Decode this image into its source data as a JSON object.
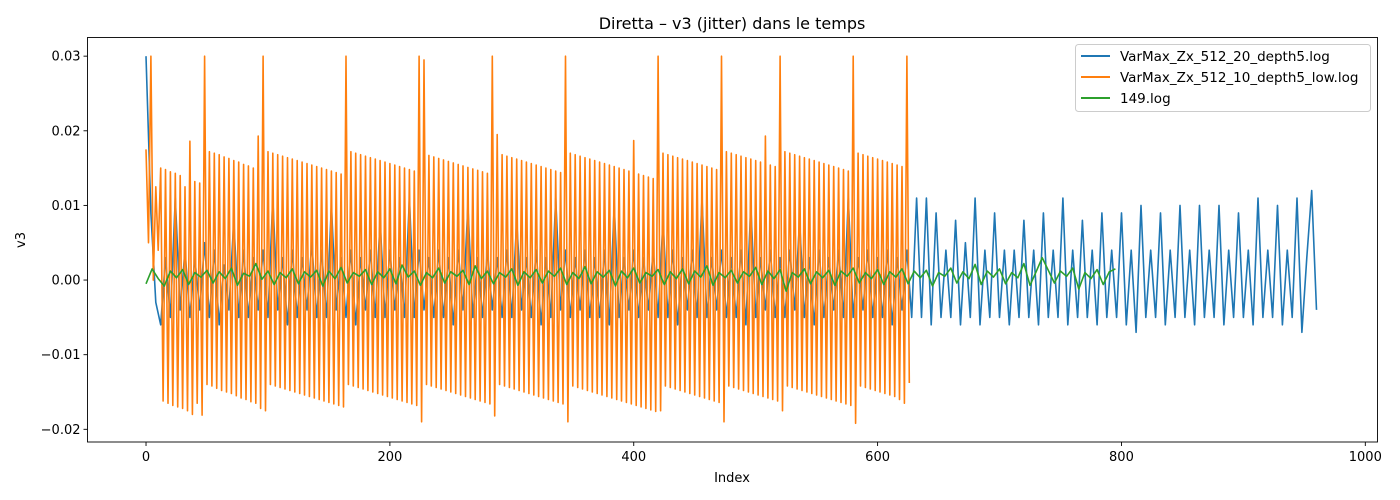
{
  "chart_data": {
    "type": "line",
    "title": "Diretta – v3 (jitter) dans le temps",
    "xlabel": "Index",
    "ylabel": "v3",
    "xlim": [
      -48,
      1010
    ],
    "ylim": [
      -0.0217,
      0.0325
    ],
    "xticks": [
      0,
      200,
      400,
      600,
      800,
      1000
    ],
    "xtick_labels": [
      "0",
      "200",
      "400",
      "600",
      "800",
      "1000"
    ],
    "yticks": [
      -0.02,
      -0.01,
      0.0,
      0.01,
      0.02,
      0.03
    ],
    "ytick_labels": [
      "−0.02",
      "−0.01",
      "0.00",
      "0.01",
      "0.02",
      "0.03"
    ],
    "grid": false,
    "legend_position": "top-right",
    "series": [
      {
        "name": "VarMax_Zx_512_20_depth5.log",
        "color": "#1f77b4",
        "x_start": 0,
        "x_step": 4,
        "y": [
          0.03,
          0.009,
          -0.003,
          -0.006,
          0.003,
          -0.005,
          0.011,
          -0.004,
          0.004,
          -0.005,
          0.003,
          -0.004,
          0.005,
          -0.005,
          0.004,
          -0.006,
          0.002,
          -0.004,
          0.008,
          -0.005,
          0.004,
          -0.005,
          0.003,
          -0.004,
          0.004,
          -0.005,
          0.011,
          -0.004,
          0.003,
          -0.006,
          0.004,
          -0.005,
          0.003,
          -0.004,
          0.005,
          -0.005,
          0.004,
          -0.005,
          0.01,
          -0.004,
          0.003,
          -0.005,
          0.004,
          -0.006,
          0.003,
          -0.004,
          0.004,
          -0.005,
          0.008,
          -0.005,
          0.004,
          -0.004,
          0.003,
          -0.005,
          0.011,
          -0.005,
          0.004,
          -0.004,
          0.003,
          -0.005,
          0.004,
          -0.005,
          0.003,
          -0.006,
          0.004,
          -0.004,
          0.01,
          -0.005,
          0.003,
          -0.005,
          0.004,
          -0.004,
          0.003,
          -0.005,
          0.004,
          -0.005,
          0.008,
          -0.004,
          0.003,
          -0.005,
          0.004,
          -0.006,
          0.003,
          -0.005,
          0.011,
          -0.004,
          0.004,
          -0.005,
          0.003,
          -0.004,
          0.004,
          -0.005,
          0.003,
          -0.005,
          0.004,
          -0.006,
          0.01,
          -0.005,
          0.003,
          -0.004,
          0.004,
          -0.005,
          0.003,
          -0.004,
          0.004,
          -0.005,
          0.008,
          -0.005,
          0.004,
          -0.006,
          0.003,
          -0.004,
          0.004,
          -0.005,
          0.011,
          -0.005,
          0.003,
          -0.004,
          0.004,
          -0.005,
          0.003,
          -0.005,
          0.004,
          -0.006,
          0.01,
          -0.005,
          0.003,
          -0.004,
          0.004,
          -0.005,
          0.003,
          -0.005,
          0.004,
          -0.004,
          0.008,
          -0.005,
          0.003,
          -0.006,
          0.004,
          -0.005,
          0.003,
          -0.004,
          0.004,
          -0.005,
          0.011,
          -0.005,
          0.003,
          -0.004,
          0.004,
          -0.005,
          0.003,
          -0.005,
          0.004,
          -0.006,
          0.003,
          -0.004,
          0.004,
          -0.005,
          0.011,
          -0.005,
          0.011,
          -0.006,
          0.009,
          -0.005,
          0.004,
          -0.005,
          0.008,
          -0.006,
          0.005,
          -0.005,
          0.011,
          -0.006,
          0.004,
          -0.005,
          0.009,
          -0.005,
          0.004,
          -0.006,
          0.004,
          -0.005,
          0.008,
          -0.005,
          0.004,
          -0.006,
          0.009,
          -0.005,
          0.004,
          -0.005,
          0.011,
          -0.006,
          0.004,
          -0.005,
          0.008,
          -0.005,
          0.004,
          -0.006,
          0.009,
          -0.005,
          0.004,
          -0.005,
          0.009,
          -0.006,
          0.004,
          -0.007,
          0.01,
          -0.005,
          0.004,
          -0.005,
          0.009,
          -0.006,
          0.004,
          -0.005,
          0.01,
          -0.005,
          0.004,
          -0.006,
          0.01,
          -0.005,
          0.004,
          -0.005,
          0.01,
          -0.006,
          0.004,
          -0.005,
          0.009,
          -0.005,
          0.004,
          -0.006,
          0.011,
          -0.005,
          0.004,
          -0.005,
          0.01,
          -0.006,
          0.004,
          -0.005,
          0.011,
          -0.007,
          0.003,
          0.012,
          -0.004
        ]
      },
      {
        "name": "VarMax_Zx_512_10_depth5_low.log",
        "color": "#ff7f0e",
        "x_start": 0,
        "x_step": 2,
        "y": [
          0.0175,
          0.005,
          0.03,
          0.0,
          0.0125,
          0.004,
          0.015,
          -0.0162,
          0.0148,
          -0.0165,
          0.0145,
          -0.0168,
          0.0143,
          -0.017,
          0.014,
          -0.0172,
          0.0125,
          -0.0175,
          0.0186,
          -0.018,
          0.0132,
          -0.0165,
          0.013,
          -0.0181,
          0.03,
          -0.014,
          0.0172,
          -0.0142,
          0.017,
          -0.0145,
          0.0168,
          -0.0148,
          0.0165,
          -0.015,
          0.0163,
          -0.0152,
          0.016,
          -0.0155,
          0.0158,
          -0.0158,
          0.0155,
          -0.016,
          0.0153,
          -0.0163,
          0.015,
          -0.0165,
          0.0193,
          -0.0172,
          0.03,
          -0.0175,
          0.0172,
          -0.014,
          0.017,
          -0.0142,
          0.0168,
          -0.0144,
          0.0166,
          -0.0146,
          0.0164,
          -0.0148,
          0.0162,
          -0.015,
          0.016,
          -0.0152,
          0.0158,
          -0.0154,
          0.0156,
          -0.0156,
          0.0154,
          -0.0158,
          0.0152,
          -0.016,
          0.015,
          -0.0162,
          0.0148,
          -0.0164,
          0.0146,
          -0.0166,
          0.0144,
          -0.0168,
          0.0142,
          -0.017,
          0.03,
          -0.014,
          0.0172,
          -0.0142,
          0.017,
          -0.0144,
          0.0168,
          -0.0146,
          0.0166,
          -0.0148,
          0.0164,
          -0.015,
          0.0162,
          -0.0152,
          0.016,
          -0.0154,
          0.0158,
          -0.0156,
          0.0156,
          -0.0158,
          0.0154,
          -0.016,
          0.0152,
          -0.0162,
          0.015,
          -0.0164,
          0.0148,
          -0.0166,
          0.0146,
          -0.0168,
          0.03,
          -0.019,
          0.0295,
          -0.014,
          0.0167,
          -0.0142,
          0.0165,
          -0.0144,
          0.0163,
          -0.0146,
          0.0161,
          -0.0148,
          0.0159,
          -0.015,
          0.0157,
          -0.0152,
          0.0155,
          -0.0154,
          0.0153,
          -0.0156,
          0.0151,
          -0.0158,
          0.0149,
          -0.016,
          0.0147,
          -0.0162,
          0.0145,
          -0.0164,
          0.0143,
          -0.0166,
          0.03,
          -0.0182,
          0.0195,
          -0.014,
          0.0168,
          -0.0142,
          0.0166,
          -0.0144,
          0.0164,
          -0.0146,
          0.0162,
          -0.0148,
          0.016,
          -0.015,
          0.0158,
          -0.0152,
          0.0156,
          -0.0154,
          0.0154,
          -0.0156,
          0.0152,
          -0.0158,
          0.015,
          -0.016,
          0.0148,
          -0.0162,
          0.0146,
          -0.0164,
          0.0144,
          -0.0166,
          0.03,
          -0.019,
          0.017,
          -0.0142,
          0.0168,
          -0.0144,
          0.0166,
          -0.0146,
          0.0164,
          -0.0148,
          0.0162,
          -0.015,
          0.016,
          -0.0152,
          0.0158,
          -0.0154,
          0.0156,
          -0.0156,
          0.0154,
          -0.0158,
          0.0152,
          -0.016,
          0.015,
          -0.0162,
          0.0148,
          -0.0164,
          0.0146,
          -0.0166,
          0.0187,
          -0.0168,
          0.0142,
          -0.017,
          0.014,
          -0.0172,
          0.0138,
          -0.0174,
          0.0136,
          -0.0176,
          0.03,
          -0.0175,
          0.017,
          -0.0142,
          0.0168,
          -0.0144,
          0.0166,
          -0.0146,
          0.0164,
          -0.0148,
          0.0162,
          -0.015,
          0.016,
          -0.0152,
          0.0158,
          -0.0154,
          0.0156,
          -0.0156,
          0.0154,
          -0.0158,
          0.0152,
          -0.016,
          0.015,
          -0.0162,
          0.0148,
          -0.0164,
          0.03,
          -0.019,
          0.0172,
          -0.0142,
          0.017,
          -0.0144,
          0.0168,
          -0.0146,
          0.0166,
          -0.0148,
          0.0164,
          -0.015,
          0.0162,
          -0.0152,
          0.016,
          -0.0154,
          0.0158,
          -0.0156,
          0.0193,
          -0.0158,
          0.0154,
          -0.016,
          0.0152,
          -0.0162,
          0.03,
          -0.0175,
          0.0172,
          -0.0142,
          0.017,
          -0.0144,
          0.0168,
          -0.0146,
          0.0166,
          -0.0148,
          0.0164,
          -0.015,
          0.0162,
          -0.0152,
          0.016,
          -0.0154,
          0.0158,
          -0.0156,
          0.0156,
          -0.0158,
          0.0154,
          -0.016,
          0.0152,
          -0.0162,
          0.015,
          -0.0164,
          0.0148,
          -0.0166,
          0.0146,
          -0.0168,
          0.03,
          -0.0192,
          0.017,
          -0.0142,
          0.0168,
          -0.0144,
          0.0166,
          -0.0146,
          0.0164,
          -0.0148,
          0.0162,
          -0.015,
          0.016,
          -0.0152,
          0.0158,
          -0.0154,
          0.0156,
          -0.0156,
          0.0154,
          -0.016,
          0.0152,
          -0.0165,
          0.03,
          -0.0138
        ]
      },
      {
        "name": "149.log",
        "color": "#2ca02c",
        "x_start": 0,
        "x_step": 5,
        "y": [
          -0.0005,
          0.0015,
          0.0002,
          -0.0008,
          0.0012,
          0.0003,
          0.0014,
          -0.0006,
          0.001,
          0.0004,
          0.0013,
          -0.0004,
          0.0011,
          0.0002,
          0.0016,
          -0.0007,
          0.0009,
          0.0005,
          0.0022,
          0.0001,
          0.0012,
          -0.0006,
          0.001,
          0.0003,
          0.0015,
          -0.0005,
          0.0011,
          0.0004,
          0.0013,
          -0.0008,
          0.0012,
          0.0002,
          0.0017,
          -0.0004,
          0.001,
          0.0005,
          0.0014,
          -0.0006,
          0.0011,
          0.0003,
          0.0015,
          -0.0005,
          0.002,
          0.0004,
          0.0012,
          -0.0007,
          0.001,
          0.0003,
          0.0016,
          -0.0004,
          0.0011,
          0.0005,
          0.0013,
          -0.0006,
          0.0019,
          0.0002,
          0.0012,
          -0.0005,
          0.001,
          0.0004,
          0.0015,
          -0.0007,
          0.0011,
          0.0003,
          0.0014,
          -0.0004,
          0.0012,
          0.0005,
          0.0016,
          -0.0006,
          0.001,
          0.0002,
          0.0018,
          -0.0005,
          0.0011,
          0.0004,
          0.0013,
          -0.0008,
          0.0012,
          0.0003,
          0.0016,
          -0.0004,
          0.001,
          0.0005,
          0.0014,
          -0.0006,
          0.0011,
          0.0002,
          0.0015,
          -0.0005,
          0.0012,
          0.0004,
          0.0019,
          -0.0007,
          0.001,
          0.0003,
          0.0013,
          -0.0004,
          0.0011,
          0.0005,
          0.0017,
          -0.0006,
          0.0012,
          0.0002,
          0.0014,
          -0.0015,
          0.001,
          0.0004,
          0.0015,
          -0.0005,
          0.0011,
          0.0003,
          0.0013,
          -0.0007,
          0.0012,
          0.0005,
          0.0016,
          -0.0004,
          0.001,
          0.0002,
          0.0014,
          -0.0006,
          0.0011,
          0.0004,
          0.0015,
          -0.0005,
          0.0012,
          0.0003,
          0.0013,
          -0.0008,
          0.001,
          0.0005,
          0.0016,
          -0.0004,
          0.0011,
          0.0002,
          0.0021,
          -0.0006,
          0.0012,
          0.0004,
          0.0015,
          -0.0005,
          0.001,
          0.0003,
          0.0022,
          -0.0007,
          0.0011,
          0.003,
          0.0013,
          -0.0004,
          0.0012,
          0.0005,
          0.0016,
          -0.0012,
          0.001,
          0.0002,
          0.0014,
          -0.0006,
          0.0011,
          0.0015
        ]
      }
    ]
  }
}
